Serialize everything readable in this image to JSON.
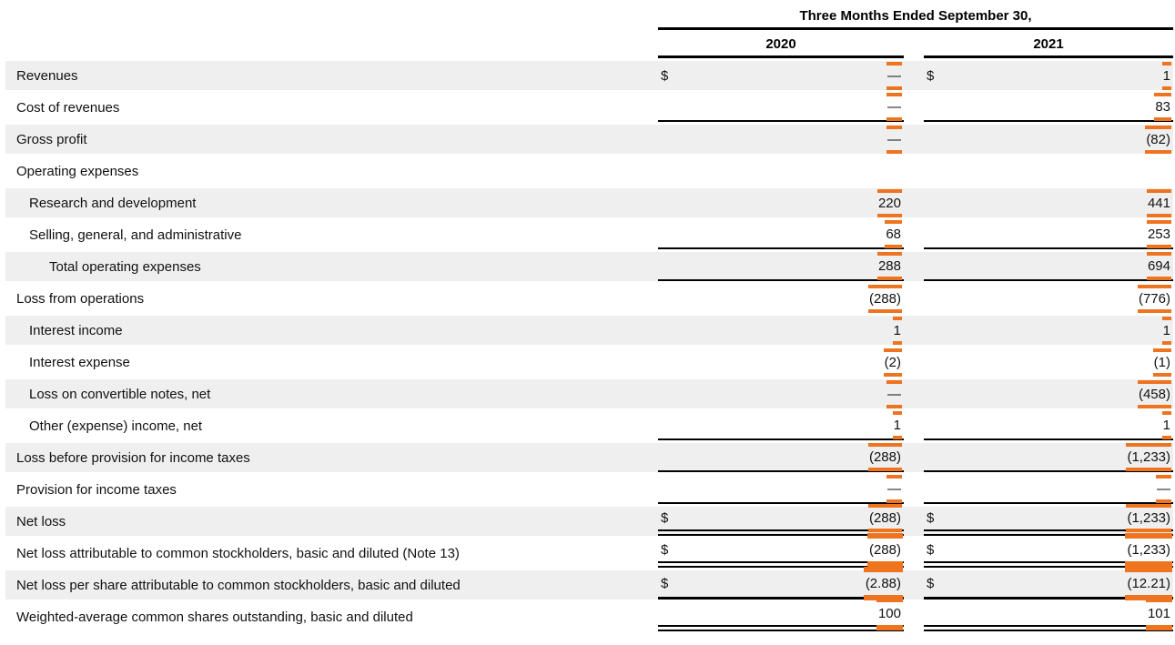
{
  "colors": {
    "highlight": "#EE7420",
    "row_shade": "#EFEFEF",
    "rule": "#000000"
  },
  "table": {
    "period_header": "Three Months Ended September 30,",
    "year_columns": [
      "2020",
      "2021"
    ]
  },
  "rows": [
    {
      "label": "Revenues",
      "cur": "$",
      "v2020": "—",
      "v2021": "1"
    },
    {
      "label": "Cost of revenues",
      "v2020": "—",
      "v2021": "83"
    },
    {
      "label": "Gross profit",
      "v2020": "—",
      "v2021": "(82)"
    },
    {
      "label": "Operating expenses"
    },
    {
      "label": "Research and development",
      "v2020": "220",
      "v2021": "441"
    },
    {
      "label": "Selling, general, and administrative",
      "v2020": "68",
      "v2021": "253"
    },
    {
      "label": "Total operating expenses",
      "v2020": "288",
      "v2021": "694"
    },
    {
      "label": "Loss from operations",
      "v2020": "(288)",
      "v2021": "(776)"
    },
    {
      "label": "Interest income",
      "v2020": "1",
      "v2021": "1"
    },
    {
      "label": "Interest expense",
      "v2020": "(2)",
      "v2021": "(1)"
    },
    {
      "label": "Loss on convertible notes, net",
      "v2020": "—",
      "v2021": "(458)"
    },
    {
      "label": "Other (expense) income, net",
      "v2020": "1",
      "v2021": "1"
    },
    {
      "label": "Loss before provision for income taxes",
      "v2020": "(288)",
      "v2021": "(1,233)"
    },
    {
      "label": "Provision for income taxes",
      "v2020": "—",
      "v2021": "—"
    },
    {
      "label": "Net loss",
      "cur": "$",
      "v2020": "(288)",
      "v2021": "(1,233)"
    },
    {
      "label": "Net loss attributable to common stockholders, basic and diluted (Note 13)",
      "cur": "$",
      "v2020": "(288)",
      "v2021": "(1,233)"
    },
    {
      "label": "Net loss per share attributable to common stockholders, basic and diluted",
      "cur": "$",
      "v2020": "(2.88)",
      "v2021": "(12.21)"
    },
    {
      "label": "Weighted-average common shares outstanding, basic and diluted",
      "v2020": "100",
      "v2021": "101"
    }
  ]
}
